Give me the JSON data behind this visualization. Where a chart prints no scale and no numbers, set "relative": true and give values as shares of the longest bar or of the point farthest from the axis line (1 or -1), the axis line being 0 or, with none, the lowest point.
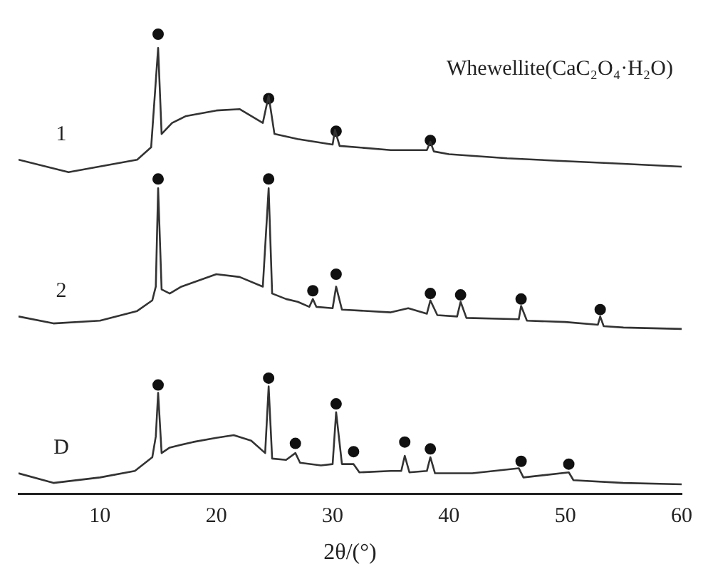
{
  "chart_data": {
    "type": "line",
    "relative": true,
    "xlabel": "2θ/(°)",
    "xlim": [
      3,
      60
    ],
    "xticks": [
      10,
      20,
      30,
      40,
      50,
      60
    ],
    "grid": false,
    "legend": false,
    "series": [
      {
        "name": "1",
        "color": "#333333",
        "marker": "none",
        "x": [
          3,
          7.3,
          13.2,
          14.4,
          15,
          15.3,
          16.2,
          17.4,
          20,
          22,
          24,
          24.5,
          25,
          27,
          30,
          30.2,
          30.6,
          35,
          38.1,
          38.4,
          38.7,
          40,
          45,
          50,
          55,
          60
        ],
        "values": [
          0.727,
          0.7,
          0.727,
          0.754,
          0.97,
          0.783,
          0.807,
          0.822,
          0.834,
          0.837,
          0.807,
          0.866,
          0.783,
          0.772,
          0.76,
          0.792,
          0.757,
          0.748,
          0.748,
          0.766,
          0.745,
          0.739,
          0.73,
          0.724,
          0.718,
          0.712
        ]
      },
      {
        "name": "2",
        "color": "#333333",
        "marker": "none",
        "x": [
          3,
          6,
          10,
          13.2,
          14.5,
          14.8,
          15,
          15.3,
          16,
          17,
          20,
          22,
          24,
          24.5,
          24.8,
          26,
          27,
          28,
          28.3,
          28.6,
          30,
          30.3,
          30.8,
          35,
          36.5,
          38.1,
          38.4,
          39,
          40.7,
          41,
          41.5,
          46,
          46.2,
          46.7,
          50,
          52.8,
          53,
          53.3,
          55,
          60
        ],
        "values": [
          0.386,
          0.371,
          0.377,
          0.398,
          0.421,
          0.451,
          0.665,
          0.445,
          0.436,
          0.451,
          0.478,
          0.472,
          0.451,
          0.665,
          0.436,
          0.424,
          0.418,
          0.407,
          0.424,
          0.407,
          0.404,
          0.451,
          0.401,
          0.395,
          0.404,
          0.392,
          0.421,
          0.389,
          0.386,
          0.418,
          0.383,
          0.38,
          0.409,
          0.377,
          0.374,
          0.368,
          0.386,
          0.365,
          0.362,
          0.359
        ]
      },
      {
        "name": "D",
        "color": "#333333",
        "marker": "none",
        "x": [
          3,
          6,
          10,
          13,
          14.5,
          14.8,
          15,
          15.3,
          16,
          18,
          20,
          21.5,
          23,
          24.2,
          24.5,
          24.8,
          26,
          26.8,
          27.2,
          29,
          30.0,
          30.3,
          30.8,
          31.8,
          32.3,
          35,
          35.9,
          36.2,
          36.6,
          38.1,
          38.4,
          38.8,
          42,
          46,
          46.4,
          50.3,
          50.7,
          55,
          60
        ],
        "values": [
          0.045,
          0.024,
          0.036,
          0.05,
          0.08,
          0.125,
          0.22,
          0.089,
          0.101,
          0.113,
          0.122,
          0.128,
          0.116,
          0.089,
          0.234,
          0.077,
          0.074,
          0.089,
          0.068,
          0.062,
          0.065,
          0.178,
          0.065,
          0.065,
          0.047,
          0.05,
          0.05,
          0.083,
          0.047,
          0.05,
          0.08,
          0.045,
          0.045,
          0.056,
          0.036,
          0.047,
          0.03,
          0.024,
          0.021
        ]
      },
      {
        "name": "Whewellite(CaC₂O₄·H₂O)",
        "type": "scatter",
        "color": "#111111",
        "marker": "circle",
        "x": [
          15,
          24.5,
          30.3,
          38.4,
          15,
          24.5,
          28.3,
          30.3,
          38.4,
          41,
          46.2,
          53,
          15,
          24.5,
          26.8,
          30.3,
          31.8,
          36.2,
          38.4,
          46.2,
          50.3
        ],
        "values": [
          1.0,
          0.86,
          0.789,
          0.769,
          0.685,
          0.685,
          0.442,
          0.478,
          0.436,
          0.433,
          0.424,
          0.401,
          0.237,
          0.252,
          0.11,
          0.196,
          0.092,
          0.113,
          0.098,
          0.071,
          0.065
        ]
      }
    ]
  }
}
